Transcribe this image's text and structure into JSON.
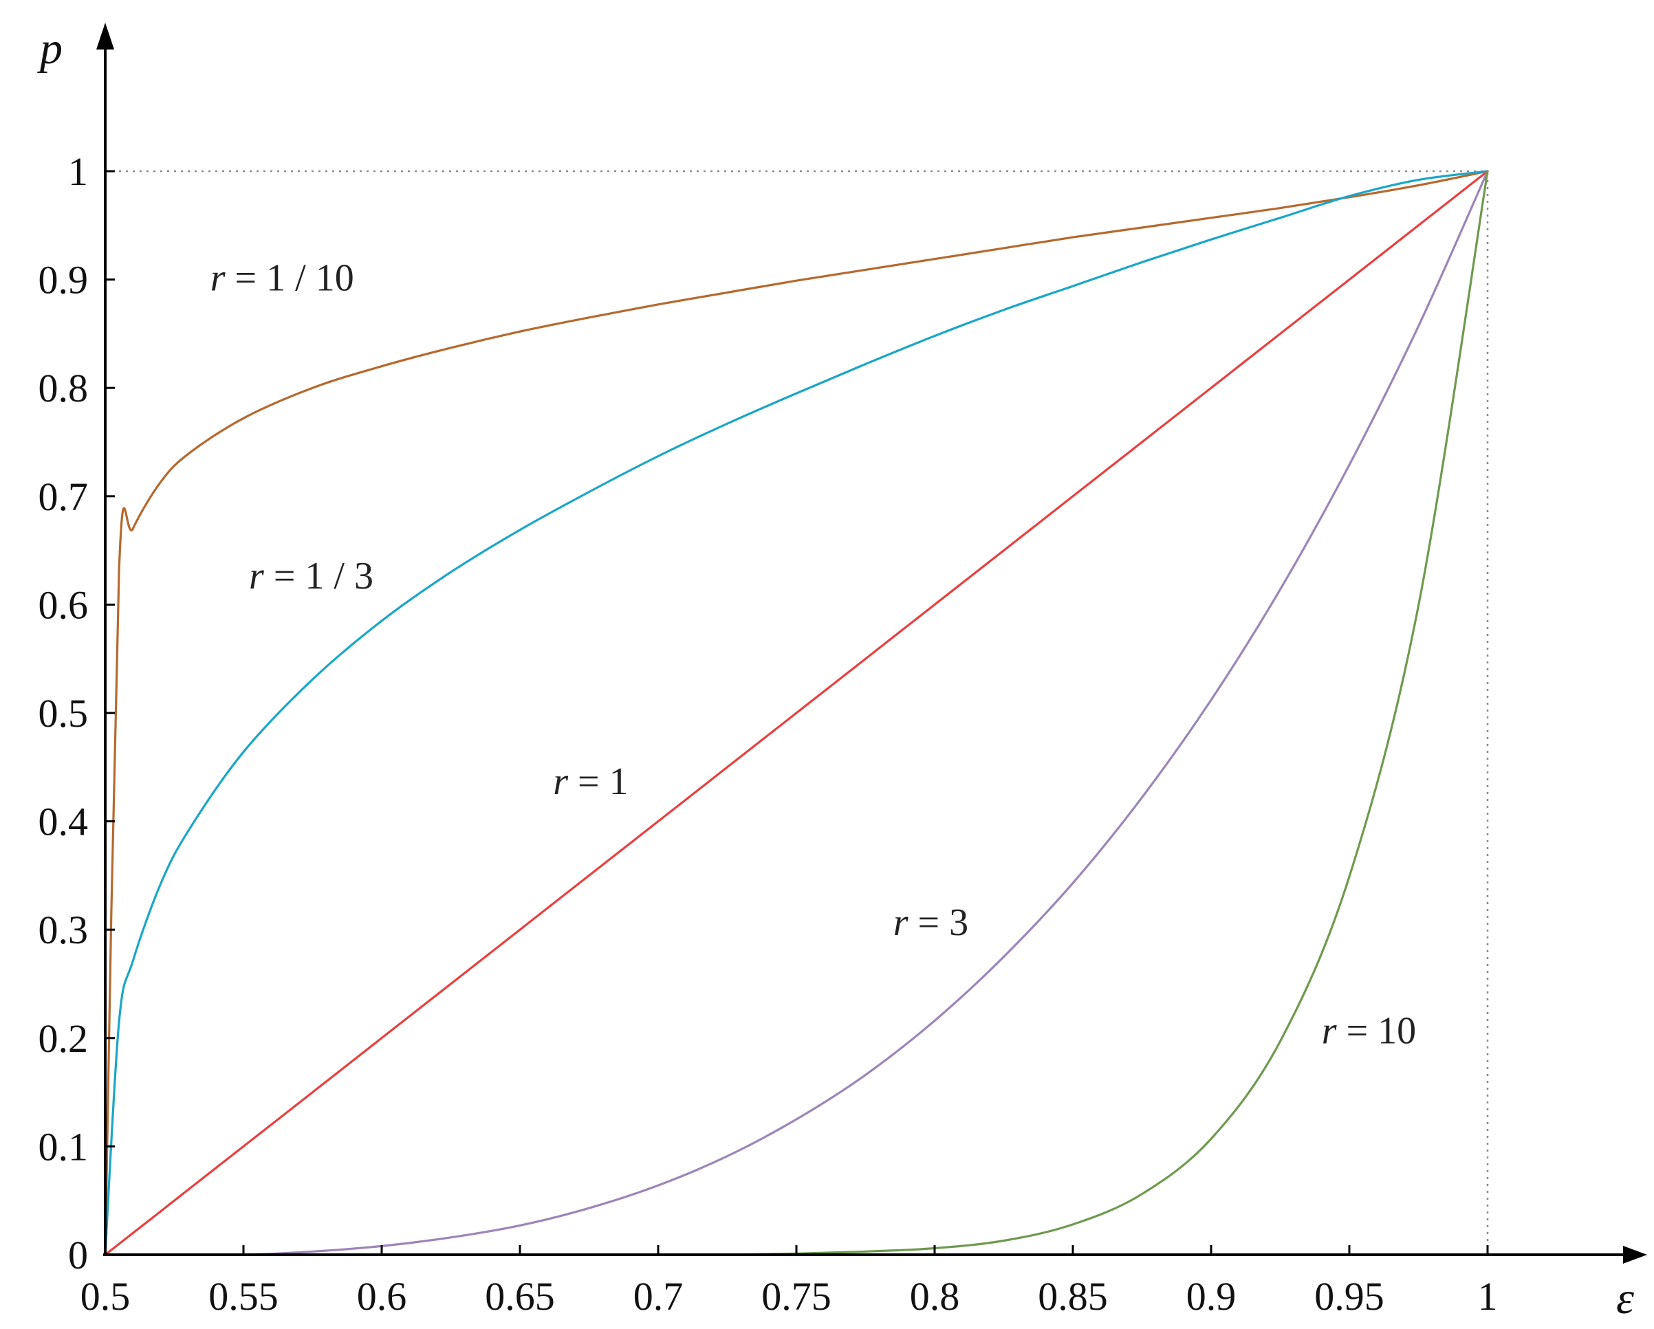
{
  "chart_data": {
    "type": "line",
    "title": "",
    "xlabel": "ε",
    "ylabel": "p",
    "xlim": [
      0.5,
      1.0
    ],
    "ylim": [
      0,
      1.1
    ],
    "x_ticks": [
      0.5,
      0.55,
      0.6,
      0.65,
      0.7,
      0.75,
      0.8,
      0.85,
      0.9,
      0.95,
      1
    ],
    "x_tick_labels": [
      "0.5",
      "0.55",
      "0.6",
      "0.65",
      "0.7",
      "0.75",
      "0.8",
      "0.85",
      "0.9",
      "0.95",
      "1"
    ],
    "y_ticks": [
      0,
      0.1,
      0.2,
      0.3,
      0.4,
      0.5,
      0.6,
      0.7,
      0.8,
      0.9,
      1
    ],
    "y_tick_labels": [
      "0",
      "0.1",
      "0.2",
      "0.3",
      "0.4",
      "0.5",
      "0.6",
      "0.7",
      "0.8",
      "0.9",
      "1"
    ],
    "grid": false,
    "legend": "none",
    "reference_lines": [
      {
        "orientation": "horizontal",
        "value": 1,
        "style": "dotted"
      },
      {
        "orientation": "vertical",
        "value": 1,
        "style": "dotted"
      }
    ],
    "x": [
      0.5,
      0.505,
      0.51,
      0.52,
      0.53,
      0.55,
      0.575,
      0.6,
      0.625,
      0.65,
      0.675,
      0.7,
      0.725,
      0.75,
      0.775,
      0.8,
      0.825,
      0.85,
      0.875,
      0.9,
      0.925,
      0.95,
      0.975,
      1.0
    ],
    "series": [
      {
        "name": "r = 1 / 10",
        "color": "#b5692f",
        "values": [
          0.0,
          0.631,
          0.67,
          0.713,
          0.739,
          0.772,
          0.8,
          0.82,
          0.837,
          0.852,
          0.865,
          0.877,
          0.888,
          0.899,
          0.909,
          0.919,
          0.929,
          0.939,
          0.948,
          0.957,
          0.966,
          0.976,
          0.987,
          1.0
        ]
      },
      {
        "name": "r = 1 / 3",
        "color": "#1aa6c8",
        "values": [
          0.0,
          0.215,
          0.271,
          0.342,
          0.391,
          0.464,
          0.531,
          0.585,
          0.63,
          0.669,
          0.704,
          0.737,
          0.767,
          0.795,
          0.822,
          0.848,
          0.872,
          0.894,
          0.916,
          0.937,
          0.957,
          0.977,
          0.992,
          1.0
        ]
      },
      {
        "name": "r = 1",
        "color": "#e8403f",
        "values": [
          0.0,
          0.01,
          0.02,
          0.04,
          0.06,
          0.1,
          0.15,
          0.2,
          0.25,
          0.3,
          0.35,
          0.4,
          0.45,
          0.5,
          0.55,
          0.6,
          0.65,
          0.7,
          0.75,
          0.8,
          0.85,
          0.9,
          0.95,
          1.0
        ]
      },
      {
        "name": "r = 3",
        "color": "#9b86b8",
        "values": [
          0.0,
          0.0,
          0.0,
          0.0,
          0.0,
          0.0,
          0.003,
          0.008,
          0.016,
          0.027,
          0.043,
          0.064,
          0.091,
          0.125,
          0.166,
          0.216,
          0.275,
          0.343,
          0.422,
          0.512,
          0.614,
          0.729,
          0.857,
          1.0
        ]
      },
      {
        "name": "r = 10",
        "color": "#6f9a4e",
        "values": [
          0.0,
          0.0,
          0.0,
          0.0,
          0.0,
          0.0,
          0.0,
          0.0,
          0.0,
          0.0,
          0.0,
          0.0,
          0.0,
          0.001,
          0.003,
          0.006,
          0.013,
          0.028,
          0.056,
          0.107,
          0.197,
          0.349,
          0.599,
          1.0
        ]
      }
    ],
    "annotations": [
      {
        "text": "r = 1 / 10",
        "x": 0.538,
        "y": 0.89
      },
      {
        "text": "r = 1 / 3",
        "x": 0.552,
        "y": 0.615
      },
      {
        "text": "r = 1",
        "x": 0.662,
        "y": 0.425
      },
      {
        "text": "r = 3",
        "x": 0.785,
        "y": 0.295
      },
      {
        "text": "r = 10",
        "x": 0.94,
        "y": 0.195
      }
    ]
  }
}
